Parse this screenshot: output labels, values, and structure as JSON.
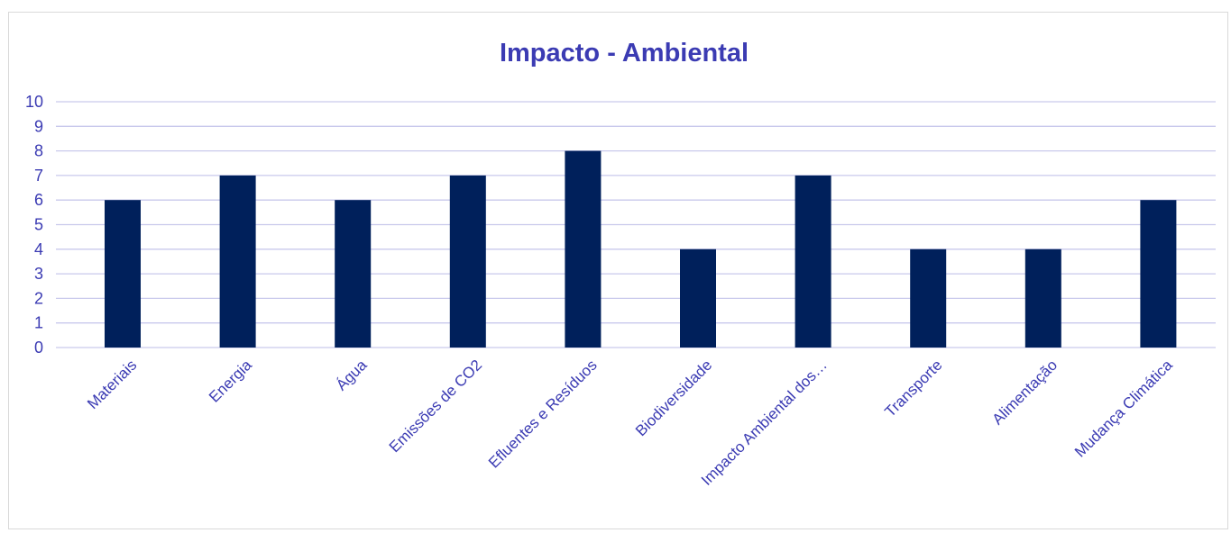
{
  "chart_data": {
    "type": "bar",
    "title": "Impacto - Ambiental",
    "xlabel": "",
    "ylabel": "",
    "categories": [
      "Materiais",
      "Energia",
      "Água",
      "Emissões de CO2",
      "Efluentes e Resíduos",
      "Biodiversidade",
      "Impacto Ambiental dos…",
      "Transporte",
      "Alimentação",
      "Mudança Climática"
    ],
    "values": [
      6,
      7,
      6,
      7,
      8,
      4,
      7,
      4,
      4,
      6
    ],
    "ylim": [
      0,
      10
    ],
    "yticks": [
      0,
      1,
      2,
      3,
      4,
      5,
      6,
      7,
      8,
      9,
      10
    ],
    "grid": true,
    "legend": "none",
    "colors": {
      "bar": "#00205b",
      "title": "#3b3bb3",
      "tick_label": "#3b3bb3",
      "gridline": "#c9c9ec",
      "frame": "#d9d9d9"
    }
  }
}
